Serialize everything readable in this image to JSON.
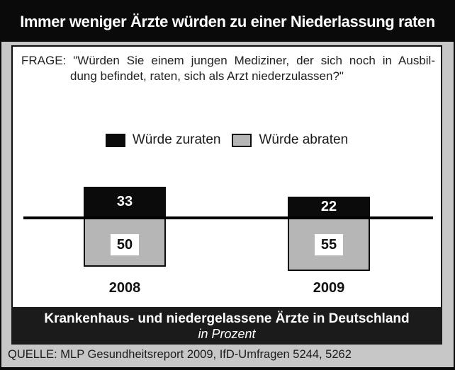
{
  "header": {
    "title": "Immer weniger Ärzte würden zu einer Niederlassung raten"
  },
  "question": {
    "line1": "FRAGE: \"Würden Sie einem jungen Mediziner, der sich noch in Ausbil-",
    "line2": "dung befindet, raten, sich als Arzt niederzulassen?\""
  },
  "legend": {
    "zuraten_label": "Würde zuraten",
    "abraten_label": "Würde abraten"
  },
  "chart_data": {
    "type": "bar",
    "subtype": "diverging-paired-columns",
    "categories": [
      "2008",
      "2009"
    ],
    "series": [
      {
        "name": "Würde zuraten",
        "direction": "up-from-baseline",
        "color": "#0b0b0b",
        "values": [
          33,
          22
        ]
      },
      {
        "name": "Würde abraten",
        "direction": "down-from-baseline",
        "color": "#b6b6b6",
        "values": [
          50,
          55
        ]
      }
    ],
    "title": "Immer weniger Ärzte würden zu einer Niederlassung raten",
    "xlabel": "",
    "ylabel": "",
    "unit": "Prozent",
    "population": "Krankenhaus- und niedergelassene Ärzte in Deutschland",
    "source": "MLP Gesundheitsreport 2009, IfD-Umfragen 5244, 5262",
    "legend_position": "top-center",
    "grid": false,
    "baseline": 0
  },
  "footer_banner": {
    "line1": "Krankenhaus- und niedergelassene Ärzte in Deutschland",
    "line2": "in Prozent"
  },
  "source": {
    "text": "QUELLE: MLP Gesundheitsreport 2009, IfD-Umfragen 5244, 5262"
  },
  "colors": {
    "background": "#c7c7c7",
    "title_bar": "#0a0a0a",
    "content_box": "#ffffff",
    "bar_black": "#0b0b0b",
    "bar_gray": "#b6b6b6",
    "banner": "#1b1b1b",
    "border": "#0d0d0d"
  }
}
